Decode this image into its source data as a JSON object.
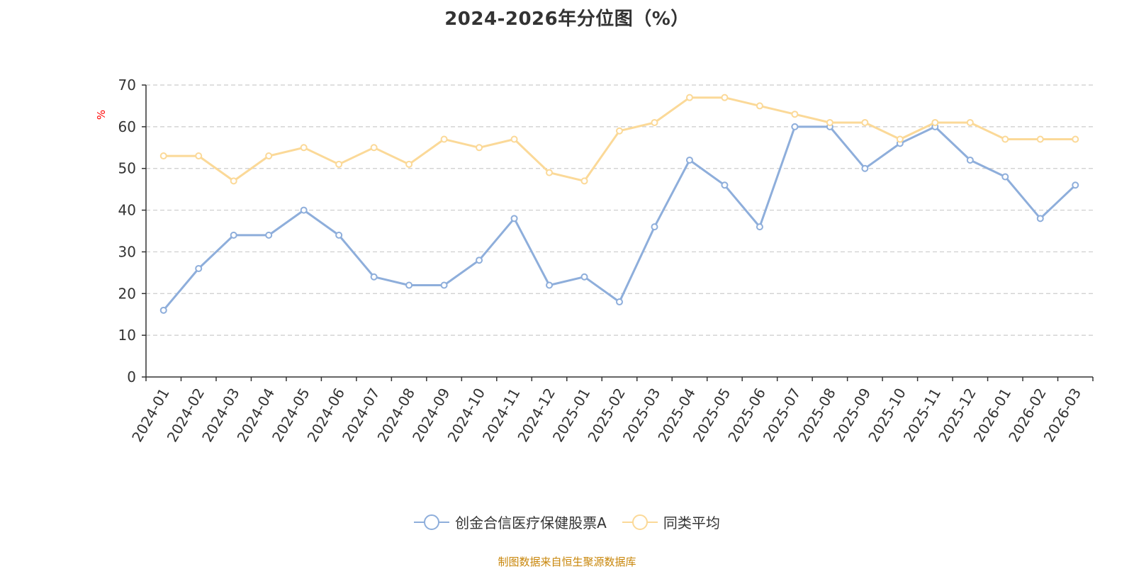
{
  "chart_data": {
    "type": "line",
    "title": "2024-2026年分位图（%）",
    "ylabel": "%",
    "xlabel": "",
    "ylim": [
      0,
      70
    ],
    "yticks": [
      0,
      10,
      20,
      30,
      40,
      50,
      60,
      70
    ],
    "grid": true,
    "legend_position": "bottom",
    "categories": [
      "2024-01",
      "2024-02",
      "2024-03",
      "2024-04",
      "2024-05",
      "2024-06",
      "2024-07",
      "2024-08",
      "2024-09",
      "2024-10",
      "2024-11",
      "2024-12",
      "2025-01",
      "2025-02",
      "2025-03",
      "2025-04",
      "2025-05",
      "2025-06",
      "2025-07",
      "2025-08",
      "2025-09",
      "2025-10",
      "2025-11",
      "2025-12",
      "2026-01",
      "2026-02",
      "2026-03"
    ],
    "series": [
      {
        "name": "创金合信医疗保健股票A",
        "color": "#8eaedb",
        "values": [
          16,
          26,
          34,
          34,
          40,
          34,
          24,
          22,
          22,
          28,
          38,
          22,
          24,
          18,
          36,
          52,
          46,
          36,
          60,
          60,
          50,
          56,
          60,
          52,
          48,
          38,
          46
        ]
      },
      {
        "name": "同类平均",
        "color": "#fbd998",
        "values": [
          53,
          53,
          47,
          53,
          55,
          51,
          55,
          51,
          57,
          55,
          57,
          49,
          47,
          59,
          61,
          67,
          67,
          65,
          63,
          61,
          61,
          57,
          61,
          61,
          57,
          57,
          57
        ]
      }
    ]
  },
  "source_note": "制图数据来自恒生聚源数据库",
  "colors": {
    "axis": "#333333",
    "grid": "#cccccc",
    "ylabel": "#ff0000",
    "source": "#c8860a"
  }
}
